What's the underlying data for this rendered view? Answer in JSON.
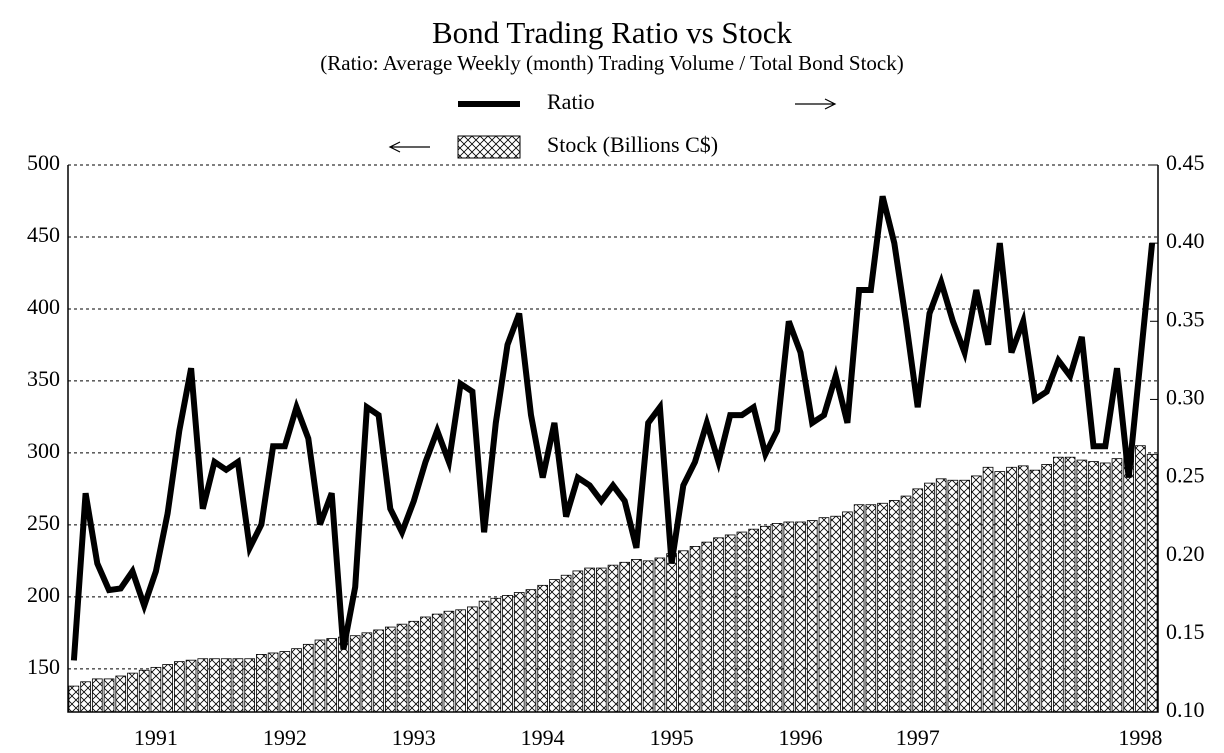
{
  "chart_data": {
    "type": "bar_line",
    "title": "Bond Trading Ratio vs Stock",
    "subtitle": "(Ratio: Average Weekly (month) Trading Volume / Total Bond Stock)",
    "categories": [
      null,
      null,
      null,
      null,
      null,
      null,
      null,
      "1991",
      null,
      null,
      null,
      null,
      null,
      null,
      null,
      null,
      null,
      null,
      "1992",
      null,
      null,
      null,
      null,
      null,
      null,
      null,
      null,
      null,
      null,
      "1993",
      null,
      null,
      null,
      null,
      null,
      null,
      null,
      null,
      null,
      null,
      "1994",
      null,
      null,
      null,
      null,
      null,
      null,
      null,
      null,
      null,
      null,
      "1995",
      null,
      null,
      null,
      null,
      null,
      null,
      null,
      null,
      null,
      null,
      "1996",
      null,
      null,
      null,
      null,
      null,
      null,
      null,
      null,
      null,
      "1997",
      null,
      null,
      null,
      null,
      null,
      null,
      null,
      null,
      null,
      null,
      null,
      null,
      null,
      null,
      null,
      null,
      null,
      null,
      "1998",
      null
    ],
    "series": [
      {
        "name": "Stock (Billions C$)",
        "color": "#000000",
        "axis": "y",
        "values": [
          138,
          141,
          143,
          143,
          145,
          147,
          149,
          151,
          153,
          155,
          156,
          157,
          157,
          157,
          157,
          157,
          160,
          161,
          162,
          164,
          167,
          170,
          171,
          172,
          173,
          175,
          177,
          179,
          181,
          183,
          186,
          188,
          190,
          191,
          193,
          197,
          199,
          201,
          203,
          205,
          208,
          212,
          215,
          218,
          220,
          220,
          222,
          224,
          226,
          225,
          227,
          230,
          232,
          235,
          238,
          241,
          243,
          245,
          247,
          249,
          251,
          252,
          252,
          253,
          255,
          256,
          259,
          264,
          264,
          265,
          267,
          270,
          275,
          279,
          282,
          281,
          281,
          284,
          290,
          287,
          290,
          291,
          288,
          292,
          297,
          297,
          295,
          294,
          293,
          296,
          303,
          305,
          299
        ]
      },
      {
        "name": "Ratio",
        "color": "#000000",
        "axis": "y2",
        "values": [
          0.133,
          0.24,
          0.195,
          0.178,
          0.179,
          0.19,
          0.168,
          0.19,
          0.227,
          0.28,
          0.32,
          0.23,
          0.26,
          0.255,
          0.26,
          0.205,
          0.22,
          0.27,
          0.27,
          0.295,
          0.275,
          0.22,
          0.24,
          0.14,
          0.18,
          0.295,
          0.29,
          0.23,
          0.215,
          0.235,
          0.26,
          0.28,
          0.26,
          0.31,
          0.305,
          0.215,
          0.285,
          0.335,
          0.355,
          0.29,
          0.25,
          0.285,
          0.225,
          0.25,
          0.245,
          0.235,
          0.245,
          0.235,
          0.205,
          0.285,
          0.295,
          0.195,
          0.245,
          0.26,
          0.285,
          0.26,
          0.29,
          0.29,
          0.295,
          0.265,
          0.28,
          0.35,
          0.33,
          0.285,
          0.29,
          0.315,
          0.285,
          0.37,
          0.37,
          0.43,
          0.4,
          0.35,
          0.295,
          0.355,
          0.375,
          0.35,
          0.33,
          0.37,
          0.335,
          0.4,
          0.33,
          0.35,
          0.3,
          0.305,
          0.325,
          0.315,
          0.34,
          0.27,
          0.27,
          0.32,
          0.25,
          0.325,
          0.4
        ]
      }
    ],
    "ylim": [
      120,
      500
    ],
    "yticks": [
      150,
      200,
      250,
      300,
      350,
      400,
      450,
      500
    ],
    "y2lim": [
      0.1,
      0.45
    ],
    "y2ticks": [
      {
        "value": 0.1,
        "label": "0.10"
      },
      0.15,
      {
        "value": 0.2,
        "label": "0.20"
      },
      0.25,
      {
        "value": 0.3,
        "label": "0.30"
      },
      0.35,
      {
        "value": 0.4,
        "label": "0.40"
      },
      0.45
    ],
    "grid": true
  }
}
